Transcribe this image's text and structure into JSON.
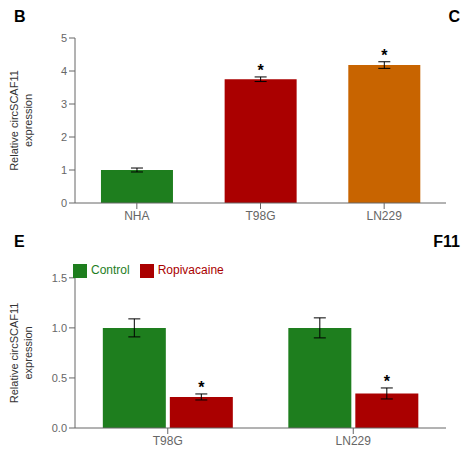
{
  "chart_data": [
    {
      "type": "bar",
      "title": "B",
      "categories": [
        "NHA",
        "T98G",
        "LN229"
      ],
      "values": [
        1.0,
        3.75,
        4.18
      ],
      "errors": [
        0.06,
        0.07,
        0.1
      ],
      "colors": [
        "#1e7e1e",
        "#aa0000",
        "#c86400"
      ],
      "ylabel": "Relative circSCAF11\nexpression",
      "ylim": [
        0,
        5
      ],
      "yticks": [
        0,
        1,
        2,
        3,
        4,
        5
      ],
      "annotations": [
        {
          "text": "C"
        },
        {
          "text": "*",
          "category": "T98G"
        },
        {
          "text": "*",
          "category": "LN229"
        }
      ]
    },
    {
      "type": "bar",
      "title": "E",
      "categories": [
        "T98G",
        "LN229"
      ],
      "series": [
        {
          "name": "Control",
          "color": "#1e7e1e",
          "values": [
            1.0,
            1.0
          ],
          "errors": [
            0.09,
            0.1
          ]
        },
        {
          "name": "Ropivacaine",
          "color": "#aa0000",
          "values": [
            0.31,
            0.345
          ],
          "errors": [
            0.03,
            0.055
          ]
        }
      ],
      "ylabel": "Relative circSCAF11\nexpression",
      "ylim": [
        0,
        1.5
      ],
      "yticks": [
        {
          "value": 0.0,
          "label": "0.0"
        },
        0.5,
        {
          "value": 1.0,
          "label": "1.0"
        },
        1.5
      ],
      "legend": "upper left",
      "annotations": [
        {
          "text": "F11"
        },
        {
          "text": "*",
          "category": "T98G",
          "series": "Ropivacaine"
        },
        {
          "text": "*",
          "category": "LN229",
          "series": "Ropivacaine"
        }
      ]
    }
  ]
}
